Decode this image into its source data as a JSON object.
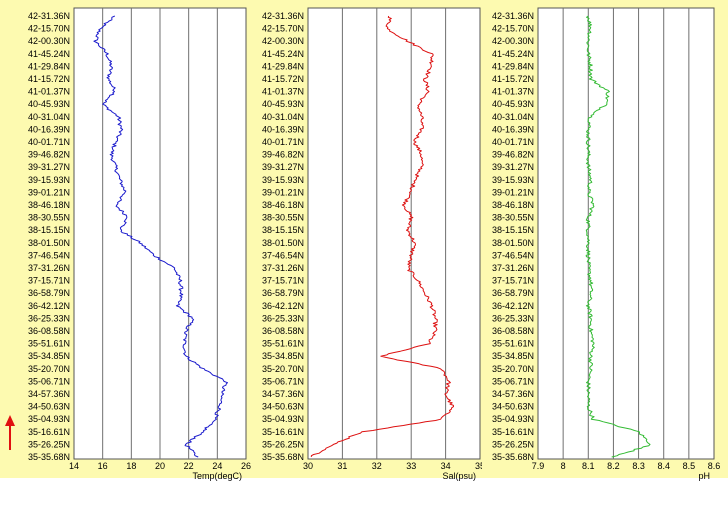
{
  "chart_data": {
    "type": "line",
    "orientation": "profile",
    "latitudes": [
      "42-31.36N",
      "42-15.70N",
      "42-00.30N",
      "41-45.24N",
      "41-29.84N",
      "41-15.72N",
      "41-01.37N",
      "40-45.93N",
      "40-31.04N",
      "40-16.39N",
      "40-01.71N",
      "39-46.82N",
      "39-31.27N",
      "39-15.93N",
      "39-01.21N",
      "38-46.18N",
      "38-30.55N",
      "38-15.15N",
      "38-01.50N",
      "37-46.54N",
      "37-31.26N",
      "37-15.71N",
      "36-58.79N",
      "36-42.12N",
      "36-25.33N",
      "36-08.58N",
      "35-51.61N",
      "35-34.85N",
      "35-20.70N",
      "35-06.71N",
      "34-57.36N",
      "34-50.63N",
      "35-04.93N",
      "35-16.61N",
      "35-26.25N",
      "35-35.68N"
    ],
    "panels": [
      {
        "name": "temperature",
        "xlabel": "Temp(degC)",
        "xlim": [
          14,
          26
        ],
        "ticks": [
          "14",
          "16",
          "18",
          "20",
          "22",
          "24",
          "26"
        ],
        "color": "#1a1acc",
        "values": [
          16.8,
          15.8,
          15.5,
          16.3,
          16.6,
          16.4,
          16.9,
          16.0,
          17.1,
          17.3,
          16.9,
          16.6,
          16.9,
          17.2,
          17.6,
          16.9,
          17.8,
          17.2,
          18.6,
          19.6,
          21.0,
          21.4,
          21.5,
          21.2,
          22.3,
          21.8,
          21.7,
          21.8,
          23.0,
          24.6,
          24.3,
          24.2,
          23.8,
          23.0,
          21.8,
          22.6
        ]
      },
      {
        "name": "salinity",
        "xlabel": "Sal(psu)",
        "xlim": [
          30,
          35
        ],
        "ticks": [
          "30",
          "31",
          "32",
          "33",
          "34",
          "35"
        ],
        "color": "#dd1010",
        "values": [
          32.4,
          32.3,
          32.9,
          33.6,
          33.6,
          33.4,
          33.5,
          33.2,
          33.3,
          33.3,
          33.1,
          33.3,
          33.3,
          33.1,
          33.0,
          32.8,
          33.0,
          32.9,
          33.1,
          33.0,
          32.9,
          33.2,
          33.4,
          33.6,
          33.7,
          33.7,
          33.5,
          32.1,
          33.9,
          34.1,
          34.0,
          34.2,
          33.9,
          31.6,
          30.7,
          30.1
        ]
      },
      {
        "name": "ph",
        "xlabel": "pH",
        "xlim": [
          7.9,
          8.6
        ],
        "ticks": [
          "7.9",
          "8",
          "8.1",
          "8.2",
          "8.3",
          "8.4",
          "8.5",
          "8.6"
        ],
        "color": "#33bb33",
        "values": [
          8.1,
          8.11,
          8.1,
          8.1,
          8.11,
          8.11,
          8.18,
          8.17,
          8.11,
          8.1,
          8.1,
          8.1,
          8.1,
          8.11,
          8.1,
          8.12,
          8.1,
          8.1,
          8.1,
          8.1,
          8.1,
          8.11,
          8.11,
          8.1,
          8.11,
          8.11,
          8.12,
          8.11,
          8.11,
          8.1,
          8.1,
          8.1,
          8.12,
          8.3,
          8.35,
          8.2
        ]
      }
    ]
  }
}
